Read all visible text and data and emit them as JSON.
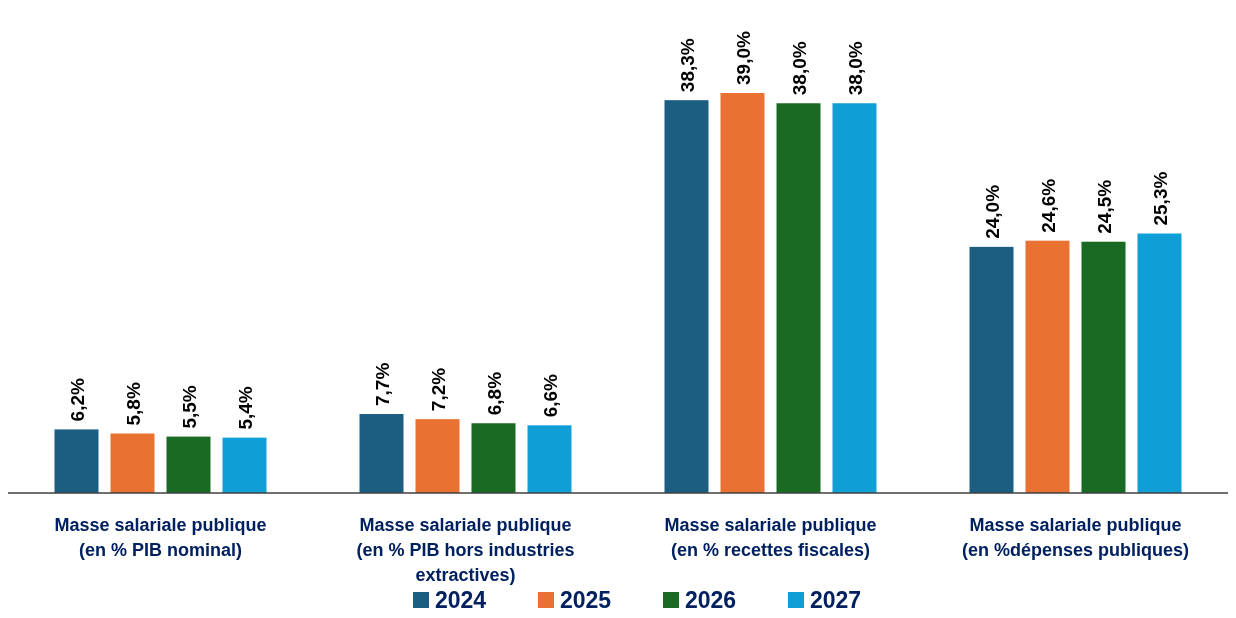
{
  "chart_data": {
    "type": "bar",
    "categories": [
      "Masse salariale publique (en % PIB nominal)",
      "Masse salariale publique (en % PIB hors industries extractives)",
      "Masse salariale publique (en % recettes fiscales)",
      "Masse salariale publique (en %dépenses publiques)"
    ],
    "series": [
      {
        "name": "2024",
        "color": "#1b5e82",
        "values": [
          6.2,
          7.7,
          38.3,
          24.0
        ],
        "value_labels": [
          "6,2%",
          "7,7%",
          "38,3%",
          "24,0%"
        ]
      },
      {
        "name": "2025",
        "color": "#e97132",
        "values": [
          5.8,
          7.2,
          39.0,
          24.6
        ],
        "value_labels": [
          "5,8%",
          "7,2%",
          "39,0%",
          "24,6%"
        ]
      },
      {
        "name": "2026",
        "color": "#196b24",
        "values": [
          5.5,
          6.8,
          38.0,
          24.5
        ],
        "value_labels": [
          "5,5%",
          "6,8%",
          "38,0%",
          "24,5%"
        ]
      },
      {
        "name": "2027",
        "color": "#0f9ed5",
        "values": [
          5.4,
          6.6,
          38.0,
          25.3
        ],
        "value_labels": [
          "5,4%",
          "6,6%",
          "38,0%",
          "25,3%"
        ]
      }
    ],
    "legend": "bottom"
  }
}
